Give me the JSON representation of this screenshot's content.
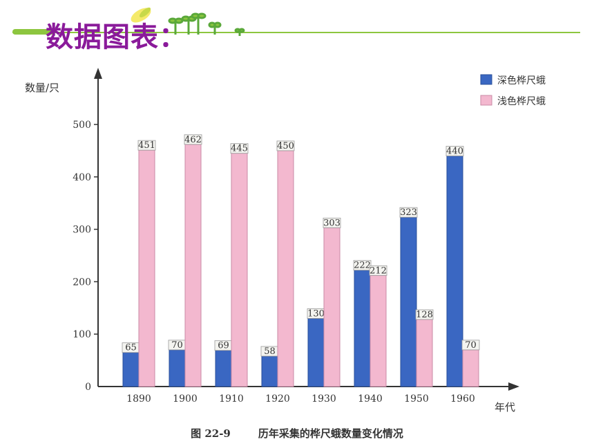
{
  "slide": {
    "title": "数据图表："
  },
  "chart_data": {
    "type": "bar",
    "ylabel": "数量/只",
    "xlabel": "年代",
    "ylim": [
      0,
      500
    ],
    "yticks": [
      0,
      100,
      200,
      300,
      400,
      500
    ],
    "categories": [
      "1890",
      "1900",
      "1910",
      "1920",
      "1930",
      "1940",
      "1950",
      "1960"
    ],
    "series": [
      {
        "name": "深色桦尺蛾",
        "color": "#3a67c2",
        "values": [
          65,
          70,
          69,
          58,
          130,
          222,
          323,
          440
        ]
      },
      {
        "name": "浅色桦尺蛾",
        "color": "#f3b8cf",
        "values": [
          451,
          462,
          445,
          450,
          303,
          212,
          128,
          70
        ]
      }
    ],
    "legend_position": "top-right",
    "grid": false,
    "caption": {
      "number": "图 22-9",
      "text": "历年采集的桦尺蛾数量变化情况"
    }
  }
}
